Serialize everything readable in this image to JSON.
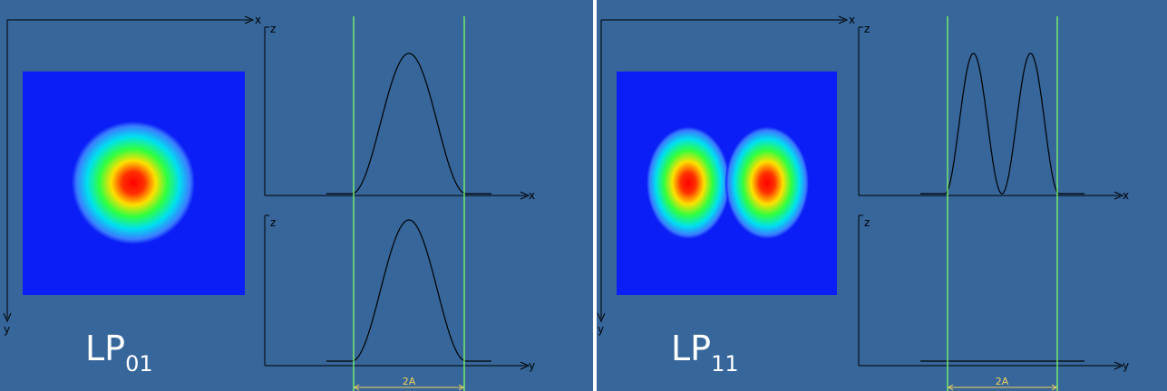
{
  "panels": [
    {
      "mode_main": "LP",
      "mode_sub": "01",
      "axis_labels": {
        "x": "x",
        "z": "z",
        "y": "y"
      },
      "span_label": "2A",
      "profiles": [
        {
          "axis": "x",
          "shape": "single-peak"
        },
        {
          "axis": "y",
          "shape": "single-peak"
        }
      ]
    },
    {
      "mode_main": "LP",
      "mode_sub": "11",
      "axis_labels": {
        "x": "x",
        "z": "z",
        "y": "y"
      },
      "span_label": "2A",
      "profiles": [
        {
          "axis": "x",
          "shape": "double-peak"
        },
        {
          "axis": "y",
          "shape": "flat"
        }
      ]
    }
  ],
  "colors": {
    "background": "#36669a",
    "field_background": "#0a1ef5",
    "guide_lines": "#7dff6a",
    "span_marker": "#f5d35a",
    "mode_label": "#ffffff"
  }
}
